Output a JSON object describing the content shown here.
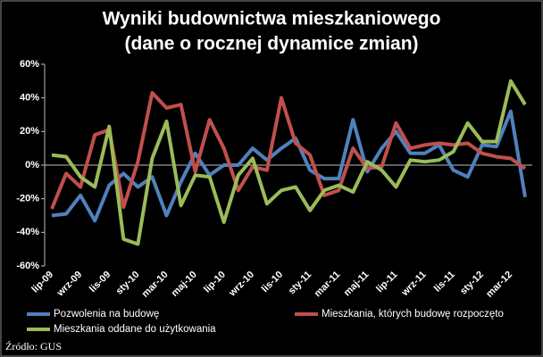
{
  "chart_data": {
    "type": "line",
    "title": "Wyniki budownictwa mieszkaniowego",
    "subtitle": "(dane o rocznej dynamice zmian)",
    "source": "Źródło: GUS",
    "categories": [
      "lip-09",
      null,
      "wrz-09",
      null,
      "lis-09",
      null,
      "sty-10",
      null,
      "mar-10",
      null,
      "maj-10",
      null,
      "lip-10",
      null,
      "wrz-10",
      null,
      "lis-10",
      null,
      "sty-11",
      null,
      "mar-11",
      null,
      "maj-11",
      null,
      "lip-11",
      null,
      "wrz-11",
      null,
      "lis-11",
      null,
      "sty-12",
      null,
      "mar-12",
      null
    ],
    "series": [
      {
        "name": "Pozwolenia na budowę",
        "color": "#4f81bd",
        "values": [
          -30,
          -29,
          -18,
          -33,
          -12,
          -5,
          -13,
          -7,
          -30,
          -10,
          7,
          -6,
          0,
          0,
          10,
          3,
          10,
          16,
          -3,
          -8,
          -8,
          27,
          -4,
          10,
          20,
          7,
          7,
          12,
          -3,
          -7,
          12,
          11,
          32,
          -19
        ]
      },
      {
        "name": "Mieszkania, których budowę rozpoczęto",
        "color": "#c0504d",
        "values": [
          -26,
          -5,
          -13,
          18,
          21,
          -25,
          2,
          43,
          34,
          36,
          -4,
          27,
          10,
          -15,
          -1,
          -3,
          40,
          13,
          6,
          -18,
          -15,
          10,
          -2,
          -1,
          25,
          10,
          12,
          13,
          12,
          13,
          7,
          5,
          4,
          -2
        ]
      },
      {
        "name": "Mieszkania oddane do użytkowania",
        "color": "#9bbb59",
        "values": [
          6,
          5,
          -7,
          -13,
          23,
          -44,
          -47,
          4,
          26,
          -24,
          -6,
          -7,
          -34,
          -6,
          4,
          -23,
          -15,
          -13,
          -27,
          -15,
          -12,
          -16,
          2,
          -3,
          -13,
          3,
          2,
          3,
          8,
          25,
          14,
          14,
          50,
          36
        ]
      }
    ],
    "ylim": [
      -60,
      60
    ],
    "yticks": [
      {
        "value": -60,
        "label": "-60%"
      },
      {
        "value": -40,
        "label": "-40%"
      },
      {
        "value": -20,
        "label": "-20%"
      },
      {
        "value": 0,
        "label": "0%"
      },
      {
        "value": 20,
        "label": "20%"
      },
      {
        "value": 40,
        "label": "40%"
      },
      {
        "value": 60,
        "label": "60%"
      }
    ],
    "grid": false
  }
}
